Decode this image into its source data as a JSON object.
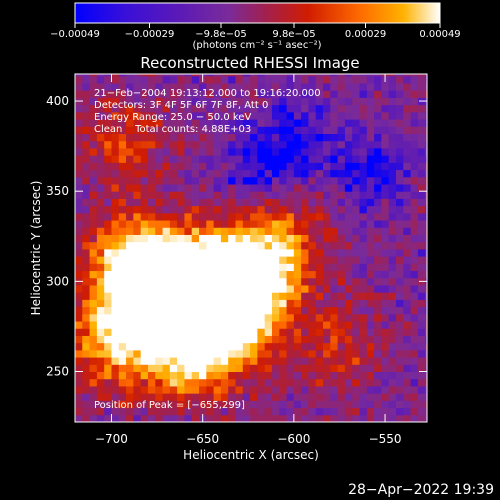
{
  "chart_data": {
    "type": "heatmap",
    "title": "Reconstructed RHESSI Image",
    "xlabel": "Heliocentric X (arcsec)",
    "ylabel": "Heliocentric Y (arcsec)",
    "xlim": [
      -720,
      -527
    ],
    "ylim": [
      222,
      415
    ],
    "x_ticks": [
      -700,
      -650,
      -600,
      -550
    ],
    "x_tick_labels": [
      "−700",
      "−650",
      "−600",
      "−550"
    ],
    "y_ticks": [
      250,
      300,
      350,
      400
    ],
    "y_tick_labels": [
      "250",
      "300",
      "350",
      "400"
    ],
    "colorbar": {
      "vmin": -0.00049,
      "vmax": 0.00049,
      "ticks": [
        -0.00049,
        -0.00029,
        -9.8e-05,
        9.8e-05,
        0.00029,
        0.00049
      ],
      "tick_labels": [
        "−0.00049",
        "−0.00029",
        "−9.8e−05",
        "9.8e−05",
        "0.00029",
        "0.00049"
      ],
      "label": "(photons cm⁻² s⁻¹ asec⁻²)",
      "colors": [
        "#0000ff",
        "#5a19b8",
        "#7a2b9a",
        "#a12050",
        "#d11d00",
        "#ff6a00",
        "#ffb200",
        "#ffffff"
      ]
    },
    "info_lines": [
      "21−Feb−2004 19:13:12.000 to 19:16:20.000",
      "Detectors: 3F 4F 5F 6F 7F 8F, Att 0",
      "Energy Range: 25.0 − 50.0 keV",
      "Clean    Total counts: 4.88E+03"
    ],
    "peak_label": "Position of Peak = [−655,299]",
    "peak_position": [
      -655,
      299
    ],
    "intensity_map": {
      "description_of_units": "normalized brightness 0-1 mapped onto colorbar",
      "bright_regions": [
        {
          "x": -675,
          "y": 290,
          "level": 0.95
        },
        {
          "x": -655,
          "y": 299,
          "level": 1.0
        },
        {
          "x": -640,
          "y": 275,
          "level": 0.9
        },
        {
          "x": -625,
          "y": 300,
          "level": 0.85
        },
        {
          "x": -690,
          "y": 310,
          "level": 0.8
        },
        {
          "x": -700,
          "y": 265,
          "level": 0.75
        },
        {
          "x": -660,
          "y": 255,
          "level": 0.7
        },
        {
          "x": -610,
          "y": 320,
          "level": 0.55
        },
        {
          "x": -695,
          "y": 375,
          "level": 0.5
        },
        {
          "x": -580,
          "y": 260,
          "level": 0.45
        }
      ],
      "dark_regions": [
        {
          "x": -600,
          "y": 380,
          "level": 0.0
        },
        {
          "x": -560,
          "y": 360,
          "level": 0.05
        },
        {
          "x": -620,
          "y": 360,
          "level": 0.08
        }
      ]
    }
  },
  "footer": {
    "date": "28−Apr−2022 19:39"
  }
}
